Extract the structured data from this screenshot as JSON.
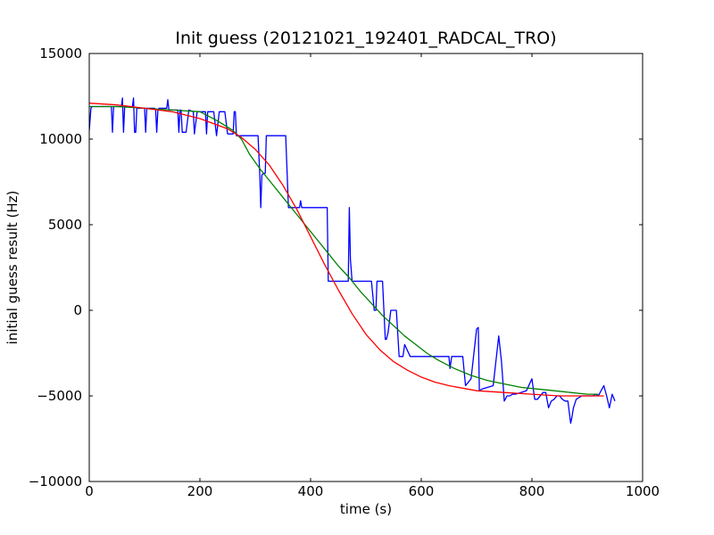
{
  "chart_data": {
    "type": "line",
    "title": "Init guess (20121021_192401_RADCAL_TRO)",
    "xlabel": "time (s)",
    "ylabel": "initial guess result (Hz)",
    "xlim": [
      0,
      1000
    ],
    "ylim": [
      -10000,
      15000
    ],
    "xticks": [
      0,
      200,
      400,
      600,
      800,
      1000
    ],
    "yticks": [
      -10000,
      -5000,
      0,
      5000,
      10000,
      15000
    ],
    "xtick_labels": [
      "0",
      "200",
      "400",
      "600",
      "800",
      "1000"
    ],
    "ytick_labels": [
      "−10000",
      "−5000",
      "0",
      "5000",
      "10000",
      "15000"
    ],
    "grid": false,
    "legend": "none",
    "series": [
      {
        "color": "#0000ff",
        "x": [
          0,
          3,
          5,
          40,
          42,
          44,
          58,
          60,
          62,
          64,
          78,
          80,
          82,
          84,
          86,
          100,
          102,
          104,
          118,
          120,
          122,
          124,
          126,
          140,
          142,
          144,
          160,
          162,
          164,
          166,
          168,
          175,
          180,
          188,
          190,
          195,
          200,
          205,
          210,
          212,
          214,
          216,
          218,
          220,
          225,
          230,
          235,
          240,
          245,
          250,
          255,
          260,
          262,
          264,
          266,
          270,
          275,
          280,
          290,
          305,
          308,
          310,
          312,
          315,
          318,
          320,
          325,
          330,
          335,
          345,
          355,
          360,
          365,
          370,
          375,
          380,
          382,
          384,
          390,
          400,
          410,
          420,
          430,
          432,
          440,
          450,
          460,
          468,
          470,
          472,
          475,
          480,
          500,
          510,
          515,
          518,
          520,
          522,
          525,
          530,
          535,
          537,
          540,
          545,
          550,
          555,
          560,
          565,
          567,
          570,
          580,
          590,
          600,
          605,
          610,
          615,
          620,
          630,
          640,
          648,
          650,
          652,
          655,
          660,
          670,
          675,
          680,
          690,
          700,
          703,
          705,
          710,
          720,
          730,
          740,
          745,
          750,
          755,
          760,
          765,
          770,
          780,
          790,
          800,
          805,
          810,
          820,
          825,
          830,
          835,
          840,
          845,
          850,
          855,
          860,
          865,
          870,
          872,
          875,
          880,
          890,
          900,
          905,
          910,
          915,
          920,
          925,
          930,
          935,
          940,
          945,
          950
        ],
        "y": [
          10500,
          11800,
          11900,
          11900,
          10400,
          11900,
          11900,
          12400,
          10400,
          11900,
          11900,
          12400,
          10400,
          10400,
          11800,
          11800,
          10400,
          11800,
          11800,
          11700,
          10400,
          11700,
          11800,
          11800,
          12300,
          11700,
          11700,
          10400,
          11700,
          11700,
          10400,
          10400,
          11700,
          11600,
          10300,
          11600,
          11600,
          11600,
          11600,
          10300,
          11600,
          11600,
          11600,
          11600,
          11600,
          10200,
          11600,
          11600,
          11600,
          10300,
          10300,
          10300,
          11600,
          11600,
          10200,
          10200,
          10200,
          10200,
          10200,
          10200,
          8000,
          6000,
          7900,
          8000,
          8000,
          10200,
          10200,
          10200,
          10200,
          10200,
          10200,
          6000,
          6000,
          6000,
          6000,
          6000,
          6400,
          6000,
          6000,
          6000,
          6000,
          6000,
          6000,
          1700,
          1700,
          1700,
          1700,
          1700,
          6000,
          3000,
          1700,
          1700,
          1700,
          1700,
          0,
          0,
          1700,
          1700,
          1700,
          1700,
          -1700,
          -1700,
          -1300,
          0,
          0,
          0,
          -2700,
          -2700,
          -2700,
          -2000,
          -2700,
          -2700,
          -2700,
          -2700,
          -2700,
          -2700,
          -2700,
          -2700,
          -2700,
          -2700,
          -2700,
          -3400,
          -2700,
          -2700,
          -2700,
          -2700,
          -4400,
          -4000,
          -1100,
          -1000,
          -4700,
          -4600,
          -4500,
          -4400,
          -1500,
          -3000,
          -5300,
          -5000,
          -5000,
          -4900,
          -4900,
          -4800,
          -4700,
          -4000,
          -5200,
          -5200,
          -4800,
          -4800,
          -5700,
          -5300,
          -5200,
          -5000,
          -5000,
          -5200,
          -5300,
          -5300,
          -6600,
          -6300,
          -5700,
          -5200,
          -5000,
          -5000,
          -5000,
          -5000,
          -4900,
          -5000,
          -4700,
          -4400,
          -5000,
          -5700,
          -4900,
          -5300
        ]
      },
      {
        "color": "#008000",
        "x": [
          0,
          50,
          100,
          150,
          200,
          230,
          260,
          275,
          290,
          310,
          330,
          350,
          370,
          390,
          410,
          430,
          450,
          470,
          490,
          510,
          530,
          550,
          570,
          590,
          610,
          630,
          660,
          690,
          720,
          750,
          780,
          810,
          840,
          870,
          900,
          920
        ],
        "y": [
          11900,
          11900,
          11800,
          11700,
          11600,
          11100,
          10500,
          10000,
          9100,
          8200,
          7400,
          6600,
          5800,
          5000,
          4200,
          3400,
          2600,
          1900,
          1100,
          400,
          -300,
          -900,
          -1500,
          -2000,
          -2500,
          -2900,
          -3400,
          -3800,
          -4100,
          -4300,
          -4500,
          -4600,
          -4700,
          -4800,
          -4900,
          -4900
        ]
      },
      {
        "color": "#ff0000",
        "x": [
          0,
          50,
          100,
          150,
          200,
          250,
          275,
          300,
          325,
          350,
          375,
          400,
          425,
          450,
          475,
          500,
          525,
          550,
          575,
          600,
          625,
          650,
          700,
          750,
          800,
          850,
          900,
          930
        ],
        "y": [
          12100,
          12000,
          11800,
          11600,
          11200,
          10600,
          10100,
          9400,
          8500,
          7300,
          5900,
          4300,
          2700,
          1200,
          -200,
          -1400,
          -2300,
          -3000,
          -3500,
          -3900,
          -4200,
          -4400,
          -4700,
          -4800,
          -4900,
          -5000,
          -5000,
          -5000
        ]
      }
    ]
  }
}
